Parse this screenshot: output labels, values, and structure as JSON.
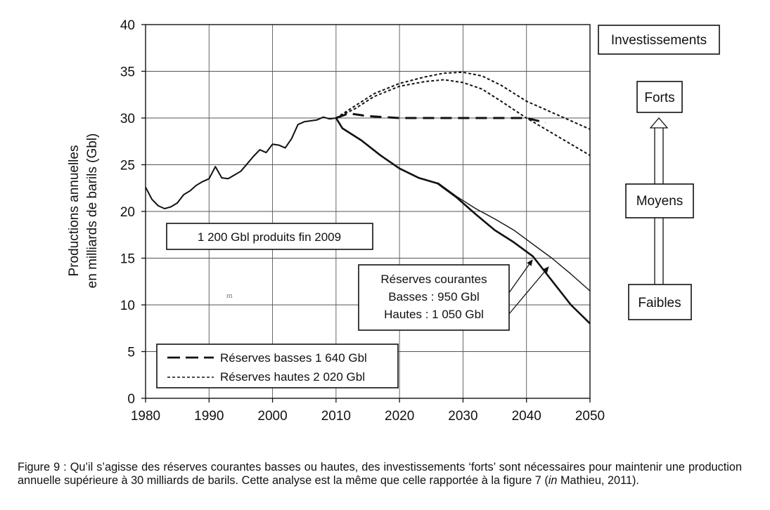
{
  "chart_data": {
    "type": "line",
    "ylabel_line1": "Productions annuelles",
    "ylabel_line2": "en milliards de barils (Gbl)",
    "xlim": [
      1980,
      2050
    ],
    "ylim": [
      0,
      40
    ],
    "x_ticks": [
      "1980",
      "1990",
      "2000",
      "2010",
      "2020",
      "2030",
      "2040",
      "2050"
    ],
    "y_ticks": [
      "0",
      "5",
      "10",
      "15",
      "20",
      "25",
      "30",
      "35",
      "40"
    ],
    "grid": true,
    "series": [
      {
        "name": "historique",
        "style": "solid",
        "color": "#111111",
        "x": [
          1980,
          1981,
          1982,
          1983,
          1984,
          1985,
          1986,
          1987,
          1988,
          1989,
          1990,
          1991,
          1992,
          1993,
          1994,
          1995,
          1996,
          1997,
          1998,
          1999,
          2000,
          2001,
          2002,
          2003,
          2004,
          2005,
          2006,
          2007,
          2008,
          2009,
          2010
        ],
        "y": [
          22.6,
          21.3,
          20.6,
          20.3,
          20.5,
          20.9,
          21.8,
          22.2,
          22.8,
          23.2,
          23.5,
          24.8,
          23.6,
          23.5,
          23.9,
          24.3,
          25.1,
          25.9,
          26.6,
          26.3,
          27.2,
          27.1,
          26.8,
          27.8,
          29.3,
          29.6,
          29.7,
          29.8,
          30.1,
          29.9,
          30.0
        ]
      },
      {
        "name": "Réserves basses 1 640 Gbl",
        "style": "longdash",
        "color": "#111111",
        "x": [
          2010,
          2012,
          2015,
          2020,
          2025,
          2030,
          2035,
          2040,
          2043
        ],
        "y": [
          30.0,
          30.5,
          30.2,
          30.0,
          30.0,
          30.0,
          30.0,
          30.0,
          29.5
        ]
      },
      {
        "name": "Réserves hautes 2 020 Gbl (basses)",
        "style": "shortdash",
        "color": "#111111",
        "x": [
          2010,
          2013,
          2016,
          2020,
          2024,
          2027,
          2030,
          2033,
          2036,
          2040,
          2045,
          2050
        ],
        "y": [
          30.0,
          31.0,
          32.3,
          33.4,
          33.9,
          34.1,
          33.8,
          33.1,
          31.8,
          30.0,
          28.0,
          26.0
        ]
      },
      {
        "name": "Réserves hautes 2 020 Gbl (hautes)",
        "style": "shortdash",
        "color": "#111111",
        "x": [
          2010,
          2013,
          2016,
          2020,
          2024,
          2027,
          2030,
          2033,
          2036,
          2040,
          2045,
          2050
        ],
        "y": [
          30.0,
          31.3,
          32.6,
          33.7,
          34.4,
          34.8,
          34.9,
          34.5,
          33.5,
          31.8,
          30.3,
          28.8
        ]
      },
      {
        "name": "Réserves courantes basses 950 Gbl",
        "style": "solid-thick",
        "color": "#111111",
        "x": [
          2010,
          2011,
          2014,
          2017,
          2020,
          2023,
          2026,
          2029,
          2032,
          2035,
          2038,
          2041,
          2044,
          2047,
          2050
        ],
        "y": [
          30.0,
          28.9,
          27.6,
          26.0,
          24.6,
          23.6,
          23.0,
          21.5,
          19.7,
          18.0,
          16.7,
          15.2,
          12.6,
          10.0,
          8.0
        ]
      },
      {
        "name": "Réserves courantes hautes 1 050 Gbl",
        "style": "solid-thin",
        "color": "#111111",
        "x": [
          2026,
          2029,
          2032,
          2035,
          2038,
          2041,
          2044,
          2047,
          2050
        ],
        "y": [
          23.1,
          21.6,
          20.3,
          19.2,
          18.0,
          16.5,
          15.0,
          13.3,
          11.5
        ]
      }
    ],
    "annotations": {
      "produced": "1 200 Gbl produits fin 2009",
      "current_reserves_title": "Réserves courantes",
      "current_reserves_low": "Basses : 950 Gbl",
      "current_reserves_high": "Hautes : 1 050 Gbl",
      "stray_mark": "m"
    },
    "legend": {
      "placement": "bottom-left",
      "entries": [
        {
          "label": "Réserves basses 1 640 Gbl",
          "style": "longdash"
        },
        {
          "label": "Réserves hautes 2 020 Gbl",
          "style": "shortdash"
        }
      ]
    }
  },
  "side_panel": {
    "title": "Investissements",
    "levels": [
      "Forts",
      "Moyens",
      "Faibles"
    ]
  },
  "caption": {
    "part1": "Figure 9 : Qu’il s’agisse des réserves courantes basses ou hautes, des investissements ‘forts’ sont nécessaires pour maintenir une production annuelle supérieure à 30 milliards de barils. Cette analyse est la même que celle rapportée à la figure 7 (",
    "italic": "in",
    "part2": " Mathieu, 2011)."
  }
}
